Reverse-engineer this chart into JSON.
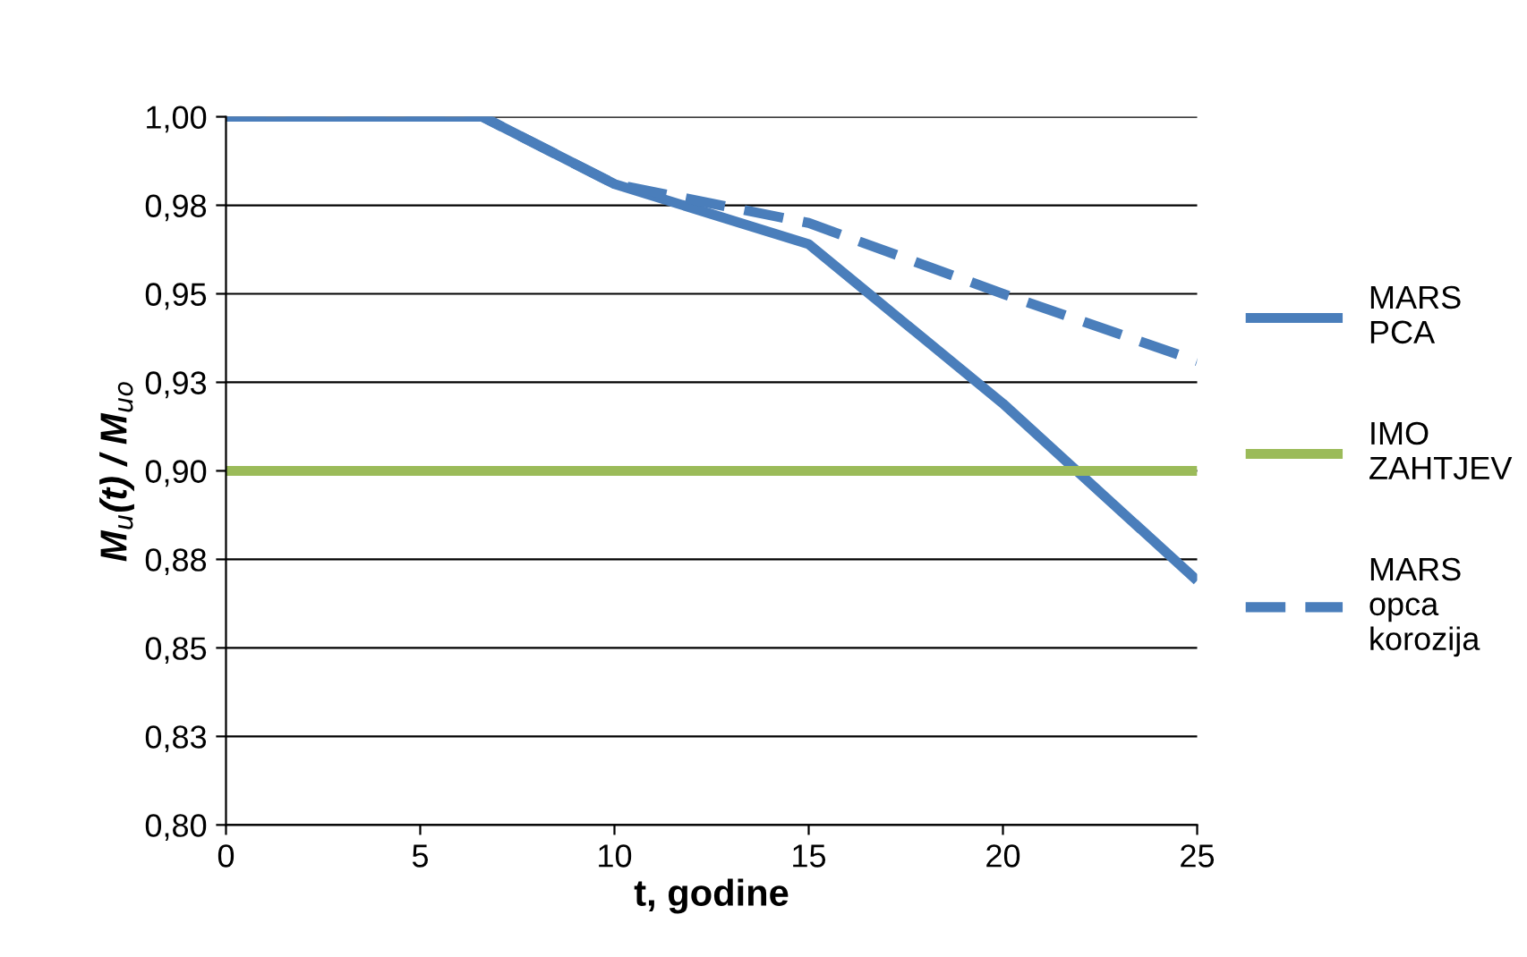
{
  "chart_data": {
    "type": "line",
    "xlabel": "t, godine",
    "ylabel": "M$_{u}$(t) / M$_{uo}$",
    "xlim": [
      0,
      25
    ],
    "xticks": [
      0,
      5,
      10,
      15,
      20,
      25
    ],
    "ylim": [
      0.8,
      1.0
    ],
    "yticks": [
      {
        "value": 0.8,
        "label": "0,80"
      },
      {
        "value": 0.825,
        "label": "0,83"
      },
      {
        "value": 0.85,
        "label": "0,85"
      },
      {
        "value": 0.875,
        "label": "0,88"
      },
      {
        "value": 0.9,
        "label": "0,90"
      },
      {
        "value": 0.925,
        "label": "0,93"
      },
      {
        "value": 0.95,
        "label": "0,95"
      },
      {
        "value": 0.975,
        "label": "0,98"
      },
      {
        "value": 1.0,
        "label": "1,00"
      }
    ],
    "grid": "y",
    "legend": "right",
    "marker": "none",
    "series": [
      {
        "name": "MARS\nPCA",
        "color": "#4a7ebb",
        "line_style": "solid",
        "x": [
          0,
          6.6,
          10,
          15,
          20,
          25
        ],
        "values": [
          1.0,
          1.0,
          0.981,
          0.964,
          0.919,
          0.869
        ]
      },
      {
        "name": "IMO\nZAHTJEV",
        "color": "#9bbb59",
        "line_style": "solid",
        "x": [
          0,
          25
        ],
        "values": [
          0.9,
          0.9
        ]
      },
      {
        "name": "MARS\nopca\nkorozija",
        "color": "#4a7ebb",
        "line_style": "dashed",
        "x": [
          0,
          6.6,
          10,
          15,
          20,
          25
        ],
        "values": [
          1.0,
          1.0,
          0.981,
          0.97,
          0.95,
          0.931
        ]
      }
    ]
  }
}
